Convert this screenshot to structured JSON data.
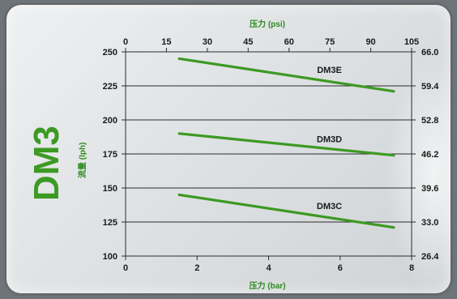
{
  "chart_data": {
    "type": "line",
    "title": "DM3",
    "xlabel": "压力 (bar)",
    "x2label": "压力 (psi)",
    "ylabel": "流量 (lph)",
    "xlim": [
      0,
      8
    ],
    "x_ticks": [
      "0",
      "2",
      "4",
      "6",
      "8"
    ],
    "x2lim": [
      0,
      105
    ],
    "x2_ticks": [
      "0",
      "15",
      "30",
      "45",
      "60",
      "75",
      "90",
      "105"
    ],
    "ylim": [
      100,
      250
    ],
    "y_ticks": [
      "100",
      "125",
      "150",
      "175",
      "200",
      "225",
      "250"
    ],
    "y2_ticks": [
      "26.4",
      "33.0",
      "39.6",
      "46.2",
      "52.8",
      "59.4",
      "66.0"
    ],
    "grid": true,
    "series": [
      {
        "name": "DM3E",
        "x": [
          1.5,
          7.5
        ],
        "y": [
          245,
          221
        ]
      },
      {
        "name": "DM3D",
        "x": [
          1.5,
          7.5
        ],
        "y": [
          190,
          174
        ]
      },
      {
        "name": "DM3C",
        "x": [
          1.5,
          7.5
        ],
        "y": [
          145,
          121
        ]
      }
    ],
    "colors": {
      "line": "#3c9a22",
      "grid": "#2b2b2b",
      "accent": "#3c9a22"
    }
  }
}
